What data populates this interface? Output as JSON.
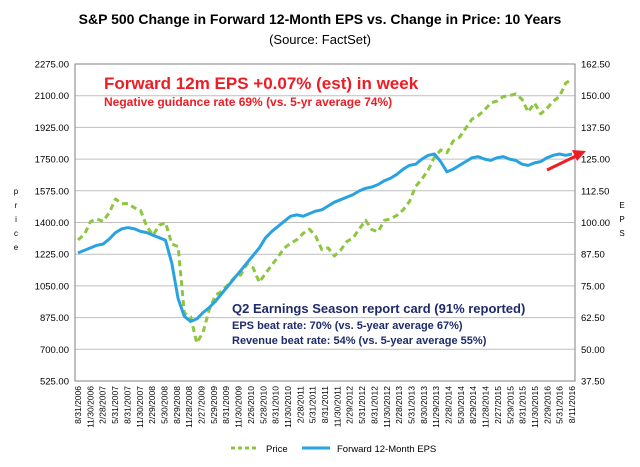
{
  "chart_data": {
    "type": "line",
    "title": "S&P 500 Change in Forward 12-Month EPS vs. Change in Price: 10 Years",
    "subtitle": "(Source: FactSet)",
    "ylabel_left": "Price",
    "ylabel_right": "EPS",
    "ylim_left": [
      525,
      2275
    ],
    "ylim_right": [
      37.5,
      162.5
    ],
    "yticks_left": [
      "2275.00",
      "2100.00",
      "1925.00",
      "1750.00",
      "1575.00",
      "1400.00",
      "1225.00",
      "1050.00",
      "875.00",
      "700.00",
      "525.00"
    ],
    "yticks_right": [
      "162.50",
      "150.00",
      "137.50",
      "125.00",
      "112.50",
      "100.00",
      "87.50",
      "75.00",
      "62.50",
      "50.00",
      "37.50"
    ],
    "x_tick_labels": [
      "8/31/2006",
      "11/30/2006",
      "2/28/2007",
      "5/31/2007",
      "8/31/2007",
      "11/30/2007",
      "2/29/2008",
      "5/30/2008",
      "8/29/2008",
      "11/28/2008",
      "2/27/2009",
      "5/29/2009",
      "8/31/2009",
      "11/30/2009",
      "2/26/2010",
      "5/28/2010",
      "8/31/2010",
      "11/30/2010",
      "2/28/2011",
      "5/31/2011",
      "8/31/2011",
      "11/30/2011",
      "2/29/2012",
      "5/31/2012",
      "8/31/2012",
      "11/30/2012",
      "2/28/2013",
      "5/31/2013",
      "8/30/2013",
      "11/29/2013",
      "2/28/2014",
      "5/30/2014",
      "8/29/2014",
      "11/28/2014",
      "2/27/2015",
      "5/29/2015",
      "8/31/2015",
      "11/30/2015",
      "2/29/2016",
      "5/31/2016",
      "8/11/2016"
    ],
    "grid": true,
    "legend_position": "bottom",
    "series": [
      {
        "name": "Price",
        "axis": "left",
        "color": "#8DC63F",
        "style": "dashed",
        "values": [
          1304,
          1333,
          1405,
          1420,
          1406,
          1454,
          1530,
          1503,
          1505,
          1481,
          1468,
          1378,
          1330,
          1385,
          1400,
          1282,
          1267,
          900,
          880,
          735,
          795,
          920,
          1000,
          1020,
          1057,
          1095,
          1110,
          1170,
          1150,
          1070,
          1120,
          1165,
          1210,
          1260,
          1285,
          1305,
          1340,
          1363,
          1325,
          1250,
          1260,
          1215,
          1247,
          1295,
          1315,
          1365,
          1412,
          1360,
          1350,
          1412,
          1420,
          1440,
          1470,
          1515,
          1600,
          1640,
          1690,
          1760,
          1800,
          1785,
          1850,
          1870,
          1920,
          1970,
          1990,
          2020,
          2060,
          2070,
          2095,
          2100,
          2110,
          2080,
          2010,
          2060,
          2000,
          2030,
          2070,
          2095,
          2170,
          2190
        ]
      },
      {
        "name": "Forward 12-Month EPS",
        "axis": "right",
        "color": "#29A3E0",
        "style": "solid",
        "values": [
          88.0,
          89.0,
          90.0,
          91.0,
          91.5,
          93.5,
          96.0,
          97.5,
          98.0,
          97.5,
          96.5,
          96.0,
          95.0,
          94.0,
          93.0,
          84.0,
          70.0,
          63.0,
          61.0,
          62.0,
          64.5,
          66.5,
          69.0,
          72.0,
          75.0,
          78.0,
          81.0,
          84.0,
          87.0,
          90.0,
          94.0,
          96.5,
          98.5,
          100.5,
          102.5,
          103.0,
          102.5,
          103.5,
          104.5,
          105.0,
          106.5,
          108.0,
          109.0,
          110.0,
          111.0,
          112.5,
          113.5,
          114.0,
          115.0,
          116.5,
          117.5,
          119.0,
          121.0,
          122.5,
          123.0,
          125.0,
          126.5,
          127.0,
          124.0,
          120.0,
          121.0,
          122.5,
          124.0,
          125.5,
          126.0,
          125.0,
          124.5,
          125.5,
          126.0,
          125.0,
          124.5,
          123.0,
          122.5,
          123.5,
          124.0,
          125.5,
          126.5,
          127.0,
          126.5,
          127.0
        ]
      }
    ],
    "annotations": [
      {
        "text": "Forward 12m EPS +0.07% (est) in week",
        "color": "#EE1C25"
      },
      {
        "text": "Negative guidance rate 69% (vs. 5-yr average 74%)",
        "color": "#EE1C25"
      },
      {
        "text": "Q2 Earnings Season report card (91% reported)",
        "color": "#1F2A6B"
      },
      {
        "text": "EPS beat rate: 70% (vs. 5-year average 67%)",
        "color": "#1F2A6B"
      },
      {
        "text": "Revenue beat rate: 54% (vs. 5-year average 55%)",
        "color": "#1F2A6B"
      }
    ],
    "arrow_color": "#EE1C25"
  }
}
